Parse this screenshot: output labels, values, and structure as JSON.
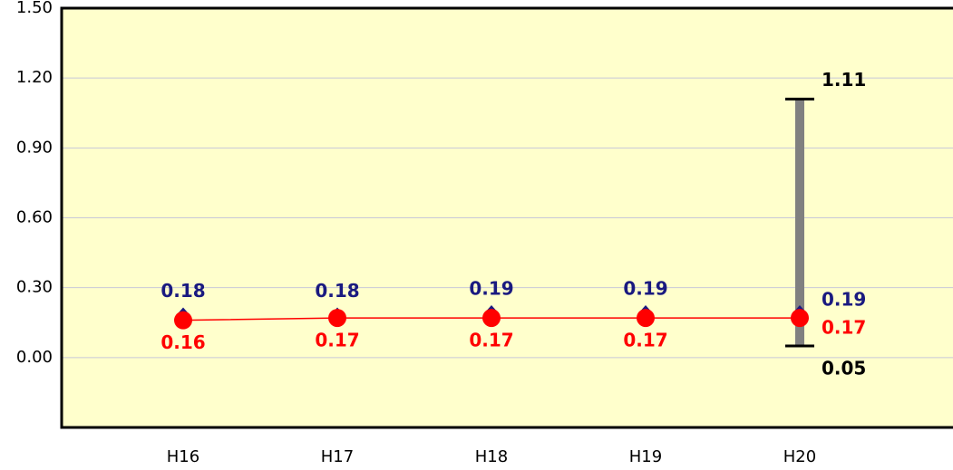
{
  "chart_data": {
    "type": "line",
    "categories": [
      "H16",
      "H17",
      "H18",
      "H19",
      "H20"
    ],
    "series": [
      {
        "color": "#1a1a80",
        "marker": "diamond",
        "line": false,
        "values": [
          0.18,
          0.18,
          0.19,
          0.19,
          0.19
        ]
      },
      {
        "color": "#ff0000",
        "marker": "circle",
        "line": true,
        "values": [
          0.16,
          0.17,
          0.17,
          0.17,
          0.17
        ]
      }
    ],
    "range": {
      "color": "#808080",
      "low": 0.05,
      "high": 1.11
    },
    "ylim": [
      -0.3,
      1.5
    ],
    "yticks": [
      {
        "value": 0,
        "label": "0.00"
      },
      {
        "value": 0.3,
        "label": "0.30"
      },
      {
        "value": 0.6,
        "label": "0.60"
      },
      {
        "value": 0.9,
        "label": "0.90"
      },
      {
        "value": 1.2,
        "label": "1.20"
      },
      {
        "value": 1.5,
        "label": "1.50"
      }
    ],
    "grid": true,
    "background": "#ffffcc"
  }
}
